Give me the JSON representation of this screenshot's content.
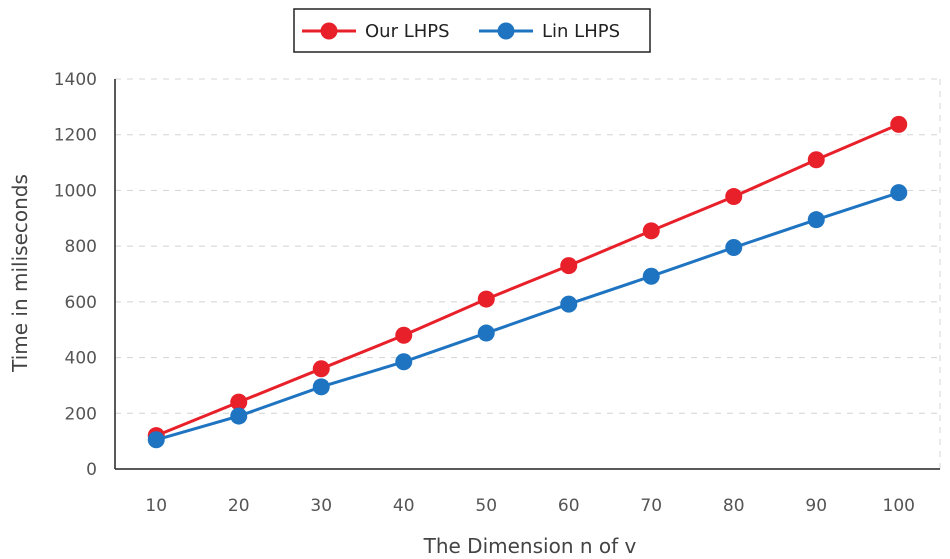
{
  "chart_data": {
    "type": "line",
    "title": "",
    "xlabel": "The Dimension n of v",
    "ylabel": "Time in miliseconds",
    "x": [
      10,
      20,
      30,
      40,
      50,
      60,
      70,
      80,
      90,
      100
    ],
    "x_tick_labels": [
      "10",
      "20",
      "30",
      "40",
      "50",
      "60",
      "70",
      "80",
      "90",
      "100"
    ],
    "ylim": [
      0,
      1400
    ],
    "y_ticks": [
      0,
      200,
      400,
      600,
      800,
      1000,
      1200,
      1400
    ],
    "y_tick_labels": [
      "0",
      "200",
      "400",
      "600",
      "800",
      "1000",
      "1200",
      "1400"
    ],
    "grid": "horizontal dashed",
    "legend_position": "top-center",
    "series": [
      {
        "name": "Our LHPS",
        "color": "#e8202a",
        "values": [
          120,
          240,
          360,
          480,
          610,
          730,
          855,
          978,
          1110,
          1237
        ]
      },
      {
        "name": "Lin LHPS",
        "color": "#1f74c1",
        "values": [
          105,
          190,
          295,
          385,
          488,
          592,
          692,
          795,
          895,
          992
        ]
      }
    ]
  }
}
